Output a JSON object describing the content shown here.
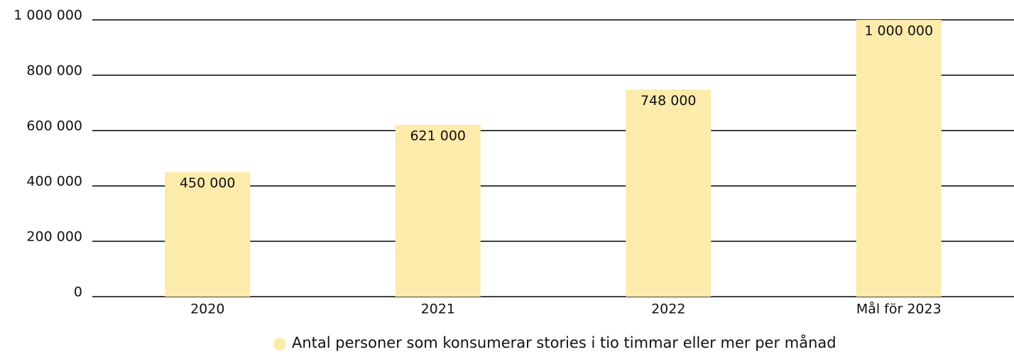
{
  "chart_data": {
    "type": "bar",
    "categories": [
      "2020",
      "2021",
      "2022",
      "Mål för 2023"
    ],
    "series": [
      {
        "name": "Antal personer som konsumerar stories i tio timmar eller mer per månad",
        "color": "#fcebab",
        "values": [
          450000,
          621000,
          748000,
          1000000
        ],
        "value_labels": [
          "450 000",
          "621 000",
          "748 000",
          "1 000 000"
        ]
      }
    ],
    "ylim": [
      0,
      1000000
    ],
    "yticks": [
      0,
      {
        "value": 200000,
        "label": "200 000"
      },
      {
        "value": 400000,
        "label": "400 000"
      },
      {
        "value": 600000,
        "label": "600 000"
      },
      {
        "value": 800000,
        "label": "800 000"
      },
      {
        "value": 1000000,
        "label": "1 000 000"
      }
    ],
    "grid": true,
    "legend": "bottom"
  }
}
